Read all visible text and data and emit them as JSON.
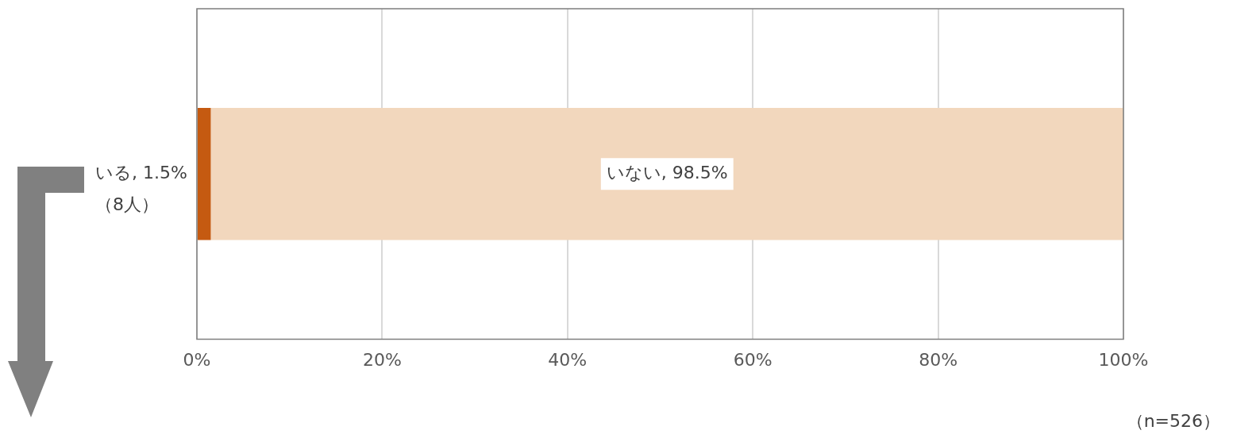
{
  "chart_data": {
    "type": "bar",
    "orientation": "horizontal",
    "stacked": true,
    "categories": [
      null
    ],
    "series": [
      {
        "name": "いる",
        "color": "#c55a11",
        "values": [
          1.5
        ],
        "value_labels": [
          ", 1.5%\n（8人）"
        ]
      },
      {
        "name": "いない",
        "color": "#f2d7bd",
        "values": [
          98.5
        ],
        "value_labels": [
          ", 98.5%"
        ]
      }
    ],
    "xlim": [
      0,
      100
    ],
    "xticks": [
      {
        "value": 0,
        "label": "0%"
      },
      {
        "value": 20,
        "label": "20%"
      },
      {
        "value": 40,
        "label": "40%"
      },
      {
        "value": 60,
        "label": "60%"
      },
      {
        "value": 80,
        "label": "80%"
      },
      {
        "value": 100,
        "label": "100%"
      }
    ],
    "grid": "x",
    "legend": false,
    "annotations": [
      "（n=526）"
    ]
  }
}
